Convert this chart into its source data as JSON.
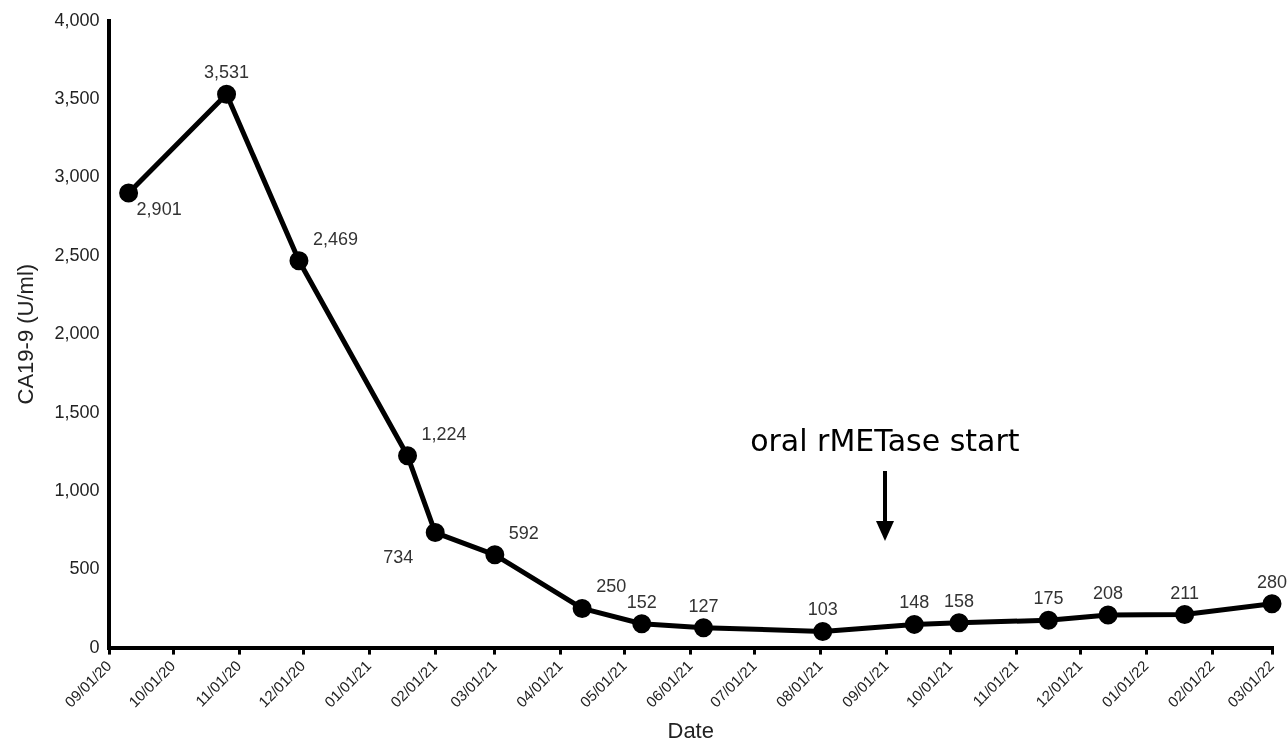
{
  "chart_data": {
    "type": "line",
    "xlabel": "Date",
    "ylabel": "CA19-9 (U/ml)",
    "x": [
      "2020-09-10",
      "2020-10-26",
      "2020-11-29",
      "2021-01-19",
      "2021-02-01",
      "2021-03-01",
      "2021-04-11",
      "2021-05-09",
      "2021-06-07",
      "2021-08-02",
      "2021-09-14",
      "2021-10-05",
      "2021-11-16",
      "2021-12-14",
      "2022-01-19",
      "2022-03-01"
    ],
    "series": [
      {
        "color": "#000000",
        "values": [
          2901,
          3531,
          2469,
          1224,
          734,
          592,
          250,
          152,
          127,
          103,
          148,
          158,
          175,
          208,
          211,
          280
        ],
        "value_labels": [
          "2,901",
          "3,531",
          "2,469",
          "1,224",
          "734",
          "592",
          "250",
          "152",
          "127",
          "103",
          "148",
          "158",
          "175",
          "208",
          "211",
          "280"
        ]
      }
    ],
    "marker": "circle",
    "line_style": "solid",
    "grid": false,
    "legend": false,
    "xlim": [
      "2020-09-01",
      "2022-03-01"
    ],
    "xticks": [
      {
        "value": "2020-09-01",
        "label": "09/01/20"
      },
      {
        "value": "2020-10-01",
        "label": "10/01/20"
      },
      {
        "value": "2020-11-01",
        "label": "11/01/20"
      },
      {
        "value": "2020-12-01",
        "label": "12/01/20"
      },
      {
        "value": "2021-01-01",
        "label": "01/01/21"
      },
      {
        "value": "2021-02-01",
        "label": "02/01/21"
      },
      {
        "value": "2021-03-01",
        "label": "03/01/21"
      },
      {
        "value": "2021-04-01",
        "label": "04/01/21"
      },
      {
        "value": "2021-05-01",
        "label": "05/01/21"
      },
      {
        "value": "2021-06-01",
        "label": "06/01/21"
      },
      {
        "value": "2021-07-01",
        "label": "07/01/21"
      },
      {
        "value": "2021-08-01",
        "label": "08/01/21"
      },
      {
        "value": "2021-09-01",
        "label": "09/01/21"
      },
      {
        "value": "2021-10-01",
        "label": "10/01/21"
      },
      {
        "value": "2021-11-01",
        "label": "11/01/21"
      },
      {
        "value": "2021-12-01",
        "label": "12/01/21"
      },
      {
        "value": "2022-01-01",
        "label": "01/01/22"
      },
      {
        "value": "2022-02-01",
        "label": "02/01/22"
      },
      {
        "value": "2022-03-01",
        "label": "03/01/22"
      }
    ],
    "ylim": [
      0,
      4000
    ],
    "yticks": [
      0,
      {
        "value": 500,
        "label": "500"
      },
      {
        "value": 1000,
        "label": "1,000"
      },
      {
        "value": 1500,
        "label": "1,500"
      },
      {
        "value": 2000,
        "label": "2,000"
      },
      {
        "value": 2500,
        "label": "2,500"
      },
      {
        "value": 3000,
        "label": "3,000"
      },
      {
        "value": 3500,
        "label": "3,500"
      },
      {
        "value": 4000,
        "label": "4,000"
      }
    ],
    "annotations": [
      "oral rMETase start"
    ]
  }
}
